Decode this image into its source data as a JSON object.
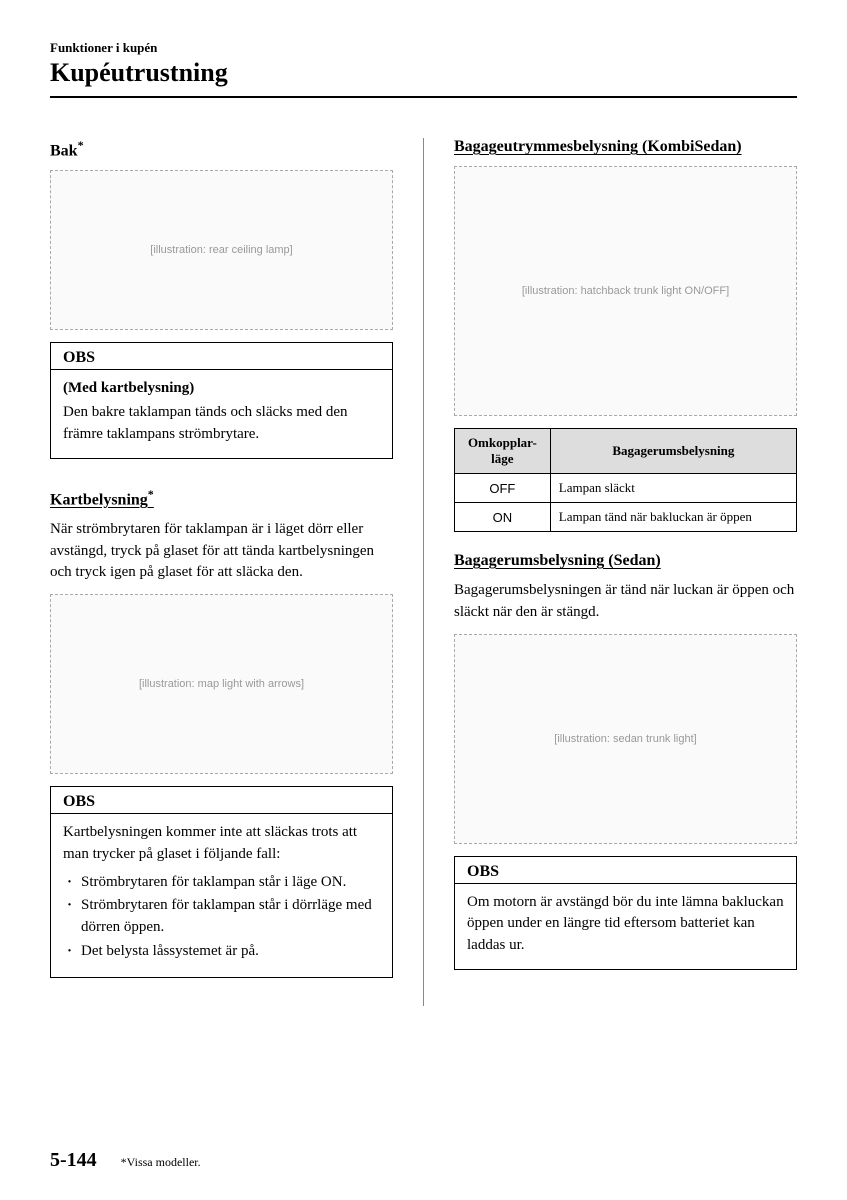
{
  "header": {
    "chapter": "Funktioner i kupén",
    "title": "Kupéutrustning"
  },
  "left": {
    "bak": {
      "heading": "Bak",
      "asterisk": "*",
      "figure_alt": "[illustration: rear ceiling lamp]"
    },
    "obs1": {
      "title": "OBS",
      "bold": "(Med kartbelysning)",
      "text": "Den bakre taklampan tänds och släcks med den främre taklampans strömbrytare."
    },
    "kart": {
      "heading": "Kartbelysning",
      "asterisk": "*",
      "text": "När strömbrytaren för taklampan är i läget dörr eller avstängd, tryck på glaset för att tända kartbelysningen och tryck igen på glaset för att släcka den.",
      "figure_alt": "[illustration: map light with arrows]"
    },
    "obs2": {
      "title": "OBS",
      "text": "Kartbelysningen kommer inte att släckas trots att man trycker på glaset i följande fall:",
      "items": [
        "Strömbrytaren för taklampan står i läge ON.",
        "Strömbrytaren för taklampan står i dörrläge med dörren öppen.",
        "Det belysta låssystemet är på."
      ]
    }
  },
  "right": {
    "bag_kombi": {
      "heading": "Bagageutrymmesbelysning (KombiSedan)",
      "figure_alt": "[illustration: hatchback trunk light ON/OFF]"
    },
    "table": {
      "head_col1": "Omkopplar-läge",
      "head_col2": "Bagagerumsbelysning",
      "rows": [
        {
          "c1": "OFF",
          "c2": "Lampan släckt"
        },
        {
          "c1": "ON",
          "c2": "Lampan tänd när bakluckan är öppen"
        }
      ]
    },
    "bag_sedan": {
      "heading": "Bagagerumsbelysning (Sedan)",
      "text": "Bagagerumsbelysningen är tänd när luckan är öppen och släckt när den är stängd.",
      "figure_alt": "[illustration: sedan trunk light]"
    },
    "obs3": {
      "title": "OBS",
      "text": "Om motorn är avstängd bör du inte lämna bakluckan öppen under en längre tid eftersom batteriet kan laddas ur."
    }
  },
  "footer": {
    "page": "5-144",
    "note": "*Vissa modeller."
  }
}
